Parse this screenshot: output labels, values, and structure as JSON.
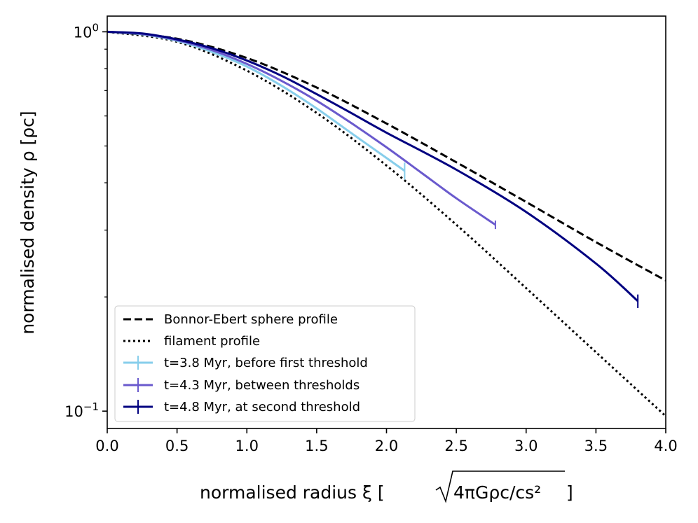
{
  "chart_data": {
    "type": "line",
    "xlabel": "normalised radius",
    "ylabel": "normalised density",
    "xlabel_symbol": "ξ",
    "xlabel_unit": "4πGρc/cs²",
    "ylabel_symbol": "ρ",
    "ylabel_unit": "ρc",
    "xscale": "linear",
    "yscale": "log",
    "xlim": [
      0.0,
      4.0
    ],
    "ylim": [
      0.09,
      1.1
    ],
    "x_ticks": [
      0.0,
      0.5,
      1.0,
      1.5,
      2.0,
      2.5,
      3.0,
      3.5,
      4.0
    ],
    "x_tick_labels": [
      "0.0",
      "0.5",
      "1.0",
      "1.5",
      "2.0",
      "2.5",
      "3.0",
      "3.5",
      "4.0"
    ],
    "y_major_ticks": [
      0.1,
      1.0
    ],
    "y_major_tick_labels": [
      {
        "base": "10",
        "exp": "−1"
      },
      {
        "base": "10",
        "exp": "0"
      }
    ],
    "y_minor_ticks": [
      0.2,
      0.3,
      0.4,
      0.5,
      0.6,
      0.7,
      0.8,
      0.9
    ],
    "legend_position": "lower-left",
    "series": [
      {
        "name": "Bonnor-Ebert sphere profile",
        "style": "dashed",
        "color": "#000000",
        "x": [
          0.0,
          0.5,
          1.0,
          1.5,
          2.0,
          2.5,
          3.0,
          3.5,
          4.0
        ],
        "y": [
          1.0,
          0.959,
          0.853,
          0.713,
          0.573,
          0.453,
          0.356,
          0.279,
          0.221
        ]
      },
      {
        "name": "filament profile",
        "style": "dotted",
        "color": "#000000",
        "x": [
          0.0,
          0.5,
          1.0,
          1.5,
          2.0,
          2.5,
          3.0,
          3.5,
          4.0
        ],
        "y": [
          1.0,
          0.941,
          0.79,
          0.611,
          0.444,
          0.31,
          0.211,
          0.143,
          0.097
        ]
      },
      {
        "name": "t=3.8 Myr, before first threshold",
        "style": "solid-errorbar",
        "color": "#87ceeb",
        "x": [
          0.0,
          0.25,
          0.5,
          0.75,
          1.0,
          1.25,
          1.5,
          1.75,
          2.0,
          2.13
        ],
        "y": [
          1.0,
          0.985,
          0.947,
          0.885,
          0.81,
          0.72,
          0.628,
          0.54,
          0.465,
          0.43
        ],
        "end_error": [
          0.408,
          0.452
        ]
      },
      {
        "name": "t=4.3 Myr, between thresholds",
        "style": "solid-errorbar",
        "color": "#6a5acd",
        "x": [
          0.0,
          0.25,
          0.5,
          0.75,
          1.0,
          1.25,
          1.5,
          1.75,
          2.0,
          2.25,
          2.5,
          2.78
        ],
        "y": [
          1.0,
          0.987,
          0.951,
          0.895,
          0.823,
          0.742,
          0.658,
          0.574,
          0.496,
          0.425,
          0.364,
          0.31
        ],
        "end_error": [
          0.302,
          0.318
        ]
      },
      {
        "name": "t=4.8 Myr, at second threshold",
        "style": "solid-errorbar",
        "color": "#000080",
        "x": [
          0.0,
          0.25,
          0.5,
          0.75,
          1.0,
          1.25,
          1.5,
          1.75,
          2.0,
          2.5,
          3.0,
          3.5,
          3.8
        ],
        "y": [
          1.0,
          0.99,
          0.955,
          0.905,
          0.84,
          0.765,
          0.685,
          0.61,
          0.542,
          0.433,
          0.335,
          0.245,
          0.195
        ],
        "end_error": [
          0.187,
          0.203
        ]
      }
    ]
  }
}
